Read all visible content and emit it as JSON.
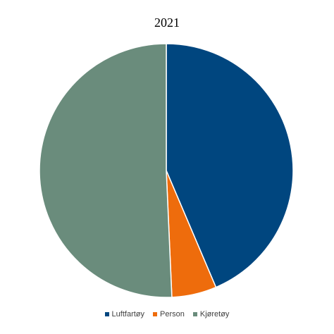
{
  "chart_data": {
    "type": "pie",
    "title": "2021",
    "legend_position": "bottom",
    "categories": [
      "Luftfartøy",
      "Person",
      "Kjøretøy"
    ],
    "values": [
      43.6,
      5.7,
      50.7
    ],
    "colors": [
      "#00467F",
      "#EE6C0C",
      "#6A8C7C"
    ]
  }
}
